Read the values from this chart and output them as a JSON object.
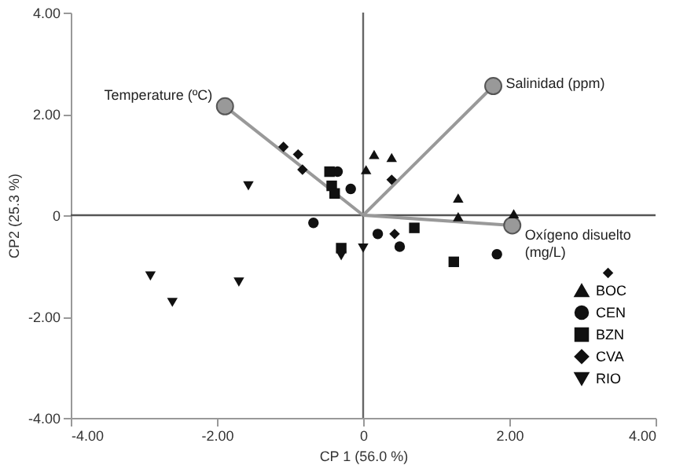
{
  "chart_data": {
    "type": "scatter",
    "xlabel": "CP 1 (56.0 %)",
    "ylabel": "CP2 (25.3 %)",
    "xlim": [
      -4,
      4
    ],
    "ylim": [
      -4,
      4
    ],
    "xticks": [
      {
        "value": -4,
        "label": "-4.00"
      },
      {
        "value": -2,
        "label": "-2.00"
      },
      0,
      {
        "value": 2,
        "label": "2.00"
      },
      {
        "value": 4,
        "label": "4.00"
      }
    ],
    "yticks": [
      {
        "value": -4,
        "label": "-4.00"
      },
      {
        "value": -2,
        "label": "-2.00"
      },
      0,
      {
        "value": 2,
        "label": "2.00"
      },
      {
        "value": 4,
        "label": "4.00"
      }
    ],
    "grid": false,
    "legend": "bottom right",
    "ref_lines": [
      {
        "axis": "x",
        "value": 0,
        "color": "#666666"
      },
      {
        "axis": "y",
        "value": 0,
        "color": "#555555"
      }
    ],
    "series": [
      {
        "name": "BOC",
        "marker": "triangle",
        "color": "#111111",
        "x": [
          0.15,
          0.39,
          0.04,
          1.3,
          1.3,
          2.06
        ],
        "values": [
          1.2,
          1.14,
          0.9,
          0.34,
          -0.03,
          0.03
        ]
      },
      {
        "name": "CEN",
        "marker": "circle",
        "color": "#111111",
        "x": [
          -0.68,
          -0.35,
          -0.17,
          0.2,
          0.5,
          1.83
        ],
        "values": [
          -0.15,
          0.86,
          0.52,
          -0.37,
          -0.62,
          -0.77
        ]
      },
      {
        "name": "BZN",
        "marker": "square",
        "color": "#111111",
        "x": [
          -0.46,
          -0.43,
          -0.39,
          0.7,
          1.24,
          -0.3
        ],
        "values": [
          0.86,
          0.58,
          0.43,
          -0.25,
          -0.92,
          -0.65
        ]
      },
      {
        "name": "CVA",
        "marker": "diamond",
        "color": "#111111",
        "x": [
          -1.09,
          -0.89,
          -0.83,
          0.39,
          0.43,
          3.35
        ],
        "values": [
          1.35,
          1.2,
          0.9,
          0.7,
          -0.37,
          -1.14
        ]
      },
      {
        "name": "RIO",
        "marker": "triangle-down",
        "color": "#111111",
        "x": [
          -1.57,
          -2.91,
          -2.61,
          -1.7,
          0.0,
          -0.3
        ],
        "values": [
          0.58,
          -1.2,
          -1.72,
          -1.32,
          -0.65,
          -0.8
        ]
      },
      {
        "type": "line",
        "color": "#999999",
        "marker": "none",
        "x": [
          0,
          -1.89
        ],
        "values": [
          0,
          2.15
        ]
      },
      {
        "type": "line",
        "color": "#999999",
        "marker": "none",
        "x": [
          0,
          1.78
        ],
        "values": [
          0,
          2.55
        ]
      },
      {
        "type": "line",
        "color": "#999999",
        "marker": "none",
        "x": [
          0,
          2.04
        ],
        "values": [
          0,
          -0.2
        ]
      },
      {
        "marker": "circle",
        "color": "#999999",
        "x": [
          -1.89,
          1.78,
          2.04
        ],
        "values": [
          2.15,
          2.55,
          -0.2
        ]
      }
    ],
    "annotations": [
      {
        "text": "Temperature (ºC)",
        "x": -1.89,
        "y": 2.15
      },
      {
        "text": "Salinidad (ppm)",
        "x": 1.78,
        "y": 2.55
      },
      {
        "text": "Oxígeno disuelto\n(mg/L)",
        "x": 2.04,
        "y": -0.2
      }
    ]
  }
}
